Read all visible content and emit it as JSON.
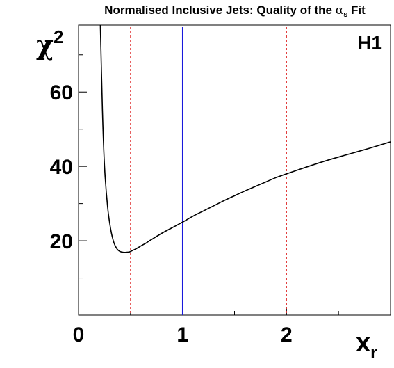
{
  "chart_data": {
    "type": "line",
    "title_main": "Normalised Inclusive Jets:  Quality of the ",
    "title_symbol": "α",
    "title_subscript": "s",
    "title_tail": " Fit",
    "ylabel_symbol": "χ",
    "ylabel_superscript": "2",
    "xlabel_main": "x",
    "xlabel_subscript": "r",
    "logo": "H1",
    "xlim": [
      0,
      3
    ],
    "ylim": [
      0,
      78
    ],
    "x_ticks": [
      0,
      1,
      2
    ],
    "x_tick_labels": [
      "0",
      "1",
      "2"
    ],
    "y_ticks": [
      20,
      40,
      60
    ],
    "y_tick_labels": [
      "20",
      "40",
      "60"
    ],
    "vertical_lines": [
      {
        "x": 0.5,
        "color": "#e03030",
        "style": "dashed"
      },
      {
        "x": 1.0,
        "color": "#1a1adc",
        "style": "solid"
      },
      {
        "x": 2.0,
        "color": "#e03030",
        "style": "dashed"
      }
    ],
    "series": [
      {
        "color": "#000000",
        "x": [
          0.21,
          0.23,
          0.25,
          0.28,
          0.31,
          0.34,
          0.37,
          0.4,
          0.43,
          0.46,
          0.49,
          0.52,
          0.55,
          0.6,
          0.65,
          0.7,
          0.8,
          0.9,
          1.0,
          1.1,
          1.2,
          1.3,
          1.4,
          1.5,
          1.6,
          1.7,
          1.8,
          1.9,
          2.0,
          2.2,
          2.4,
          2.6,
          2.8,
          3.0
        ],
        "y": [
          78,
          55,
          40,
          29,
          23,
          19.5,
          17.8,
          17.1,
          16.9,
          16.9,
          17.0,
          17.4,
          17.8,
          18.6,
          19.4,
          20.3,
          22.0,
          23.5,
          25.0,
          26.6,
          28.0,
          29.4,
          30.8,
          32.1,
          33.4,
          34.6,
          35.8,
          37.0,
          38.0,
          39.9,
          41.7,
          43.3,
          44.9,
          46.6
        ]
      }
    ]
  }
}
